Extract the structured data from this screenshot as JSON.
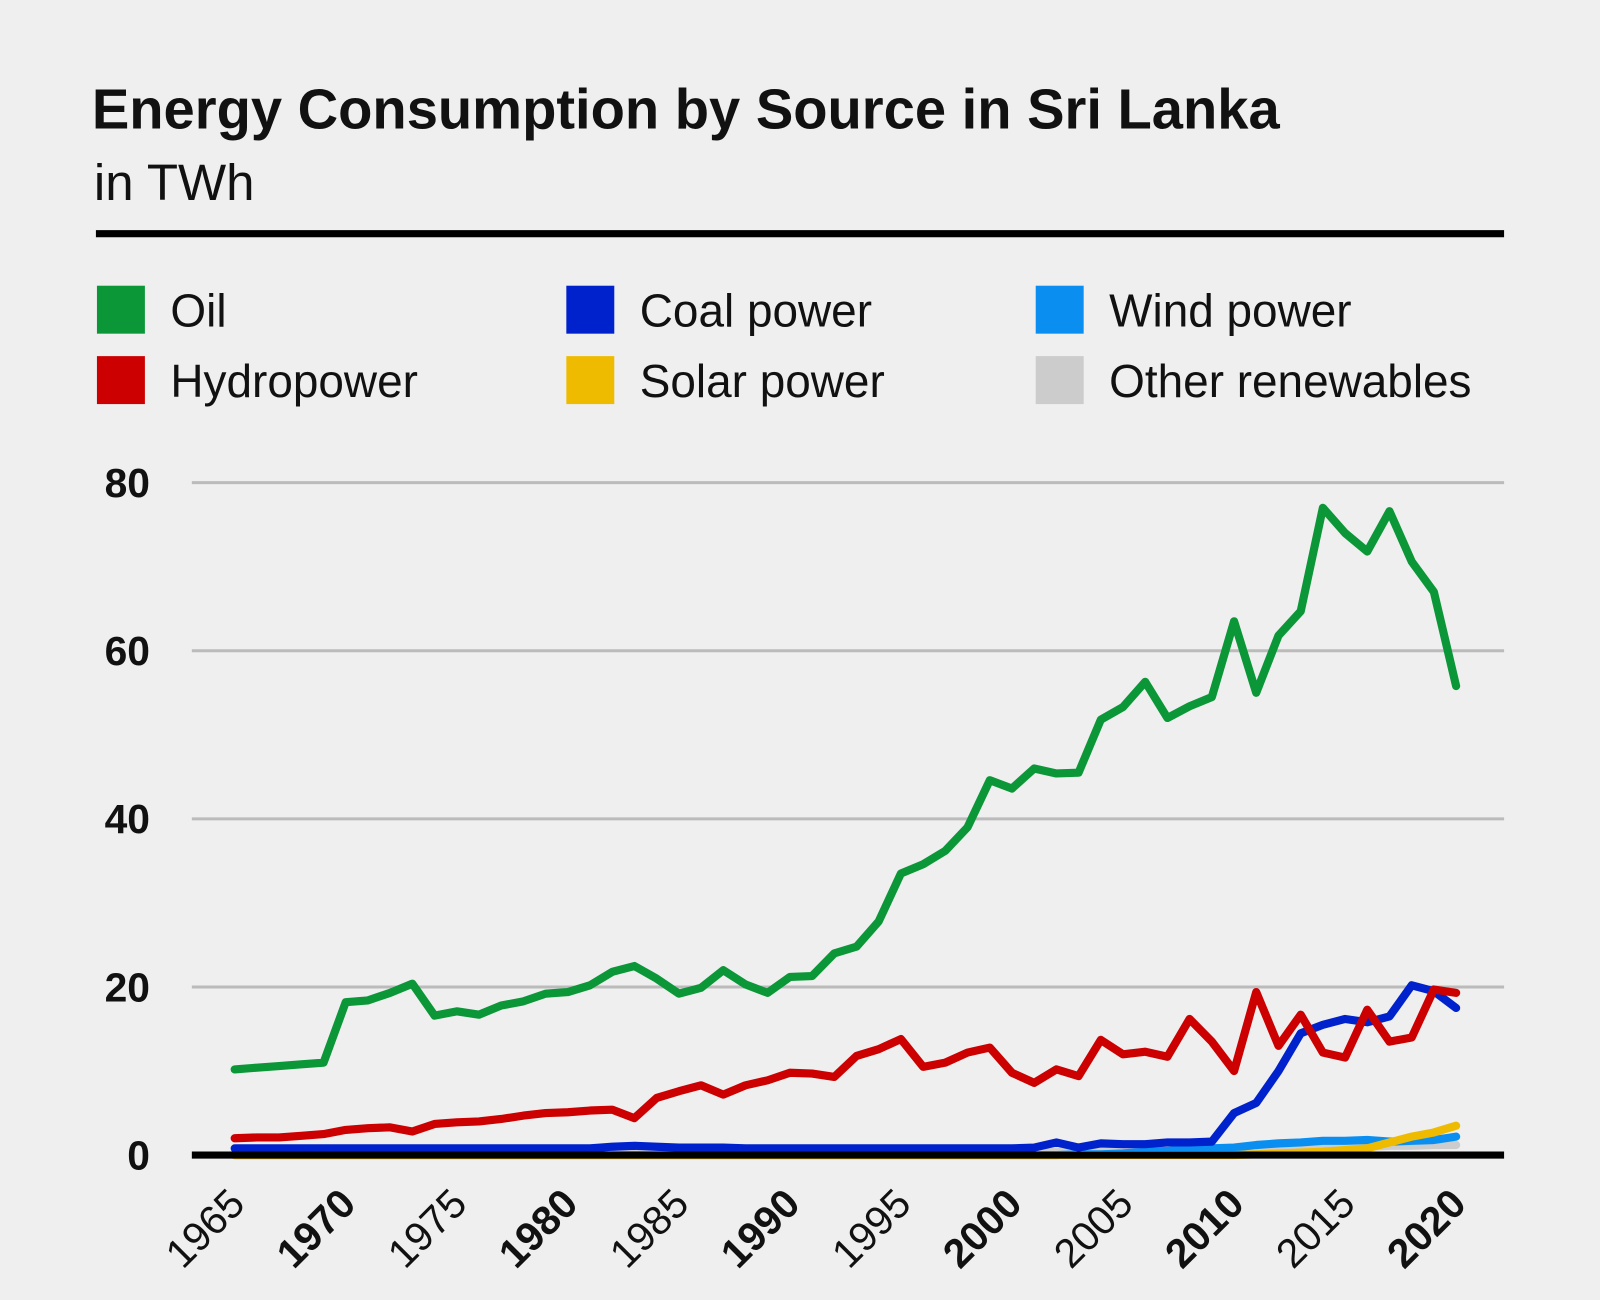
{
  "chart_data": {
    "type": "line",
    "title": "Energy Consumption by Source in Sri Lanka",
    "subtitle": "in TWh",
    "x": [
      1965,
      1966,
      1967,
      1968,
      1969,
      1970,
      1971,
      1972,
      1973,
      1974,
      1975,
      1976,
      1977,
      1978,
      1979,
      1980,
      1981,
      1982,
      1983,
      1984,
      1985,
      1986,
      1987,
      1988,
      1989,
      1990,
      1991,
      1992,
      1993,
      1994,
      1995,
      1996,
      1997,
      1998,
      1999,
      2000,
      2001,
      2002,
      2003,
      2004,
      2005,
      2006,
      2007,
      2008,
      2009,
      2010,
      2011,
      2012,
      2013,
      2014,
      2015,
      2016,
      2017,
      2018,
      2019,
      2020
    ],
    "xlim": [
      1965,
      2020
    ],
    "xticks": [
      1965,
      1970,
      1975,
      1980,
      1985,
      1990,
      1995,
      2000,
      2005,
      2010,
      2015,
      2020
    ],
    "ylim": [
      0,
      80
    ],
    "yticks": [
      0,
      20,
      40,
      60,
      80
    ],
    "grid": true,
    "legend": "top",
    "series": [
      {
        "name": "Oil",
        "color": "#0b9737",
        "values": [
          10.2,
          10.4,
          10.6,
          10.8,
          11.0,
          18.2,
          18.4,
          19.3,
          20.4,
          16.6,
          17.1,
          16.7,
          17.8,
          18.3,
          19.2,
          19.4,
          20.2,
          21.8,
          22.5,
          21.0,
          19.2,
          19.9,
          22.0,
          20.3,
          19.3,
          21.2,
          21.3,
          24.0,
          24.8,
          27.8,
          33.5,
          34.6,
          36.2,
          39.0,
          44.6,
          43.6,
          46.0,
          45.4,
          45.5,
          51.8,
          53.3,
          56.3,
          52.0,
          53.4,
          54.5,
          63.5,
          55.0,
          61.8,
          64.7,
          77.0,
          74.0,
          71.8,
          76.6,
          70.6,
          67.0,
          55.8
        ]
      },
      {
        "name": "Hydropower",
        "color": "#cc0000",
        "values": [
          2.0,
          2.1,
          2.1,
          2.3,
          2.5,
          3.0,
          3.2,
          3.3,
          2.8,
          3.7,
          3.9,
          4.0,
          4.3,
          4.7,
          5.0,
          5.1,
          5.3,
          5.4,
          4.4,
          6.8,
          7.6,
          8.3,
          7.2,
          8.3,
          8.9,
          9.8,
          9.7,
          9.3,
          11.8,
          12.6,
          13.8,
          10.5,
          11.0,
          12.2,
          12.8,
          9.8,
          8.6,
          10.2,
          9.4,
          13.7,
          12.0,
          12.3,
          11.7,
          16.2,
          13.5,
          10.0,
          19.4,
          13.0,
          16.7,
          12.2,
          11.6,
          17.3,
          13.5,
          14.0,
          19.7,
          19.3
        ]
      },
      {
        "name": "Coal power",
        "color": "#0022cc",
        "values": [
          0.8,
          0.8,
          0.8,
          0.8,
          0.8,
          0.8,
          0.8,
          0.8,
          0.8,
          0.8,
          0.8,
          0.8,
          0.8,
          0.8,
          0.8,
          0.8,
          0.8,
          1.0,
          1.1,
          1.0,
          0.9,
          0.9,
          0.9,
          0.8,
          0.8,
          0.8,
          0.8,
          0.8,
          0.8,
          0.8,
          0.8,
          0.8,
          0.8,
          0.8,
          0.8,
          0.8,
          0.9,
          1.5,
          0.9,
          1.4,
          1.3,
          1.3,
          1.5,
          1.5,
          1.6,
          5.0,
          6.2,
          10.0,
          14.5,
          15.5,
          16.2,
          15.8,
          16.5,
          20.2,
          19.5,
          17.5
        ]
      },
      {
        "name": "Solar power",
        "color": "#eebb00",
        "values": [
          0,
          0,
          0,
          0,
          0,
          0,
          0,
          0,
          0,
          0,
          0,
          0,
          0,
          0,
          0,
          0,
          0,
          0,
          0,
          0,
          0,
          0,
          0,
          0,
          0,
          0,
          0,
          0,
          0,
          0,
          0,
          0,
          0,
          0,
          0,
          0,
          0,
          0,
          0,
          0,
          0,
          0,
          0,
          0,
          0,
          0,
          0.1,
          0.2,
          0.3,
          0.4,
          0.6,
          0.8,
          1.5,
          2.2,
          2.7,
          3.5
        ]
      },
      {
        "name": "Wind power",
        "color": "#0a8ff0",
        "values": [
          0,
          0,
          0,
          0,
          0,
          0,
          0,
          0,
          0,
          0,
          0,
          0,
          0,
          0,
          0,
          0,
          0,
          0,
          0,
          0,
          0,
          0,
          0,
          0,
          0,
          0,
          0,
          0,
          0,
          0,
          0,
          0,
          0,
          0,
          0,
          0,
          0,
          0,
          0.1,
          0.1,
          0.2,
          0.4,
          0.5,
          0.7,
          0.8,
          0.9,
          1.2,
          1.4,
          1.5,
          1.7,
          1.7,
          1.8,
          1.6,
          1.7,
          1.8,
          2.2
        ]
      },
      {
        "name": "Other renewables",
        "color": "#cccccc",
        "values": [
          0.3,
          0.3,
          0.3,
          0.3,
          0.3,
          0.3,
          0.3,
          0.3,
          0.3,
          0.3,
          0.3,
          0.3,
          0.3,
          0.3,
          0.3,
          0.3,
          0.3,
          0.3,
          0.3,
          0.3,
          0.3,
          0.3,
          0.3,
          0.3,
          0.3,
          0.3,
          0.3,
          0.3,
          0.3,
          0.3,
          0.3,
          0.3,
          0.3,
          0.3,
          0.3,
          0.3,
          0.4,
          0.4,
          0.5,
          0.5,
          0.5,
          0.6,
          0.6,
          0.6,
          0.7,
          0.7,
          0.8,
          0.8,
          0.9,
          0.9,
          1.0,
          1.0,
          1.1,
          1.1,
          1.2,
          1.2
        ]
      }
    ]
  }
}
